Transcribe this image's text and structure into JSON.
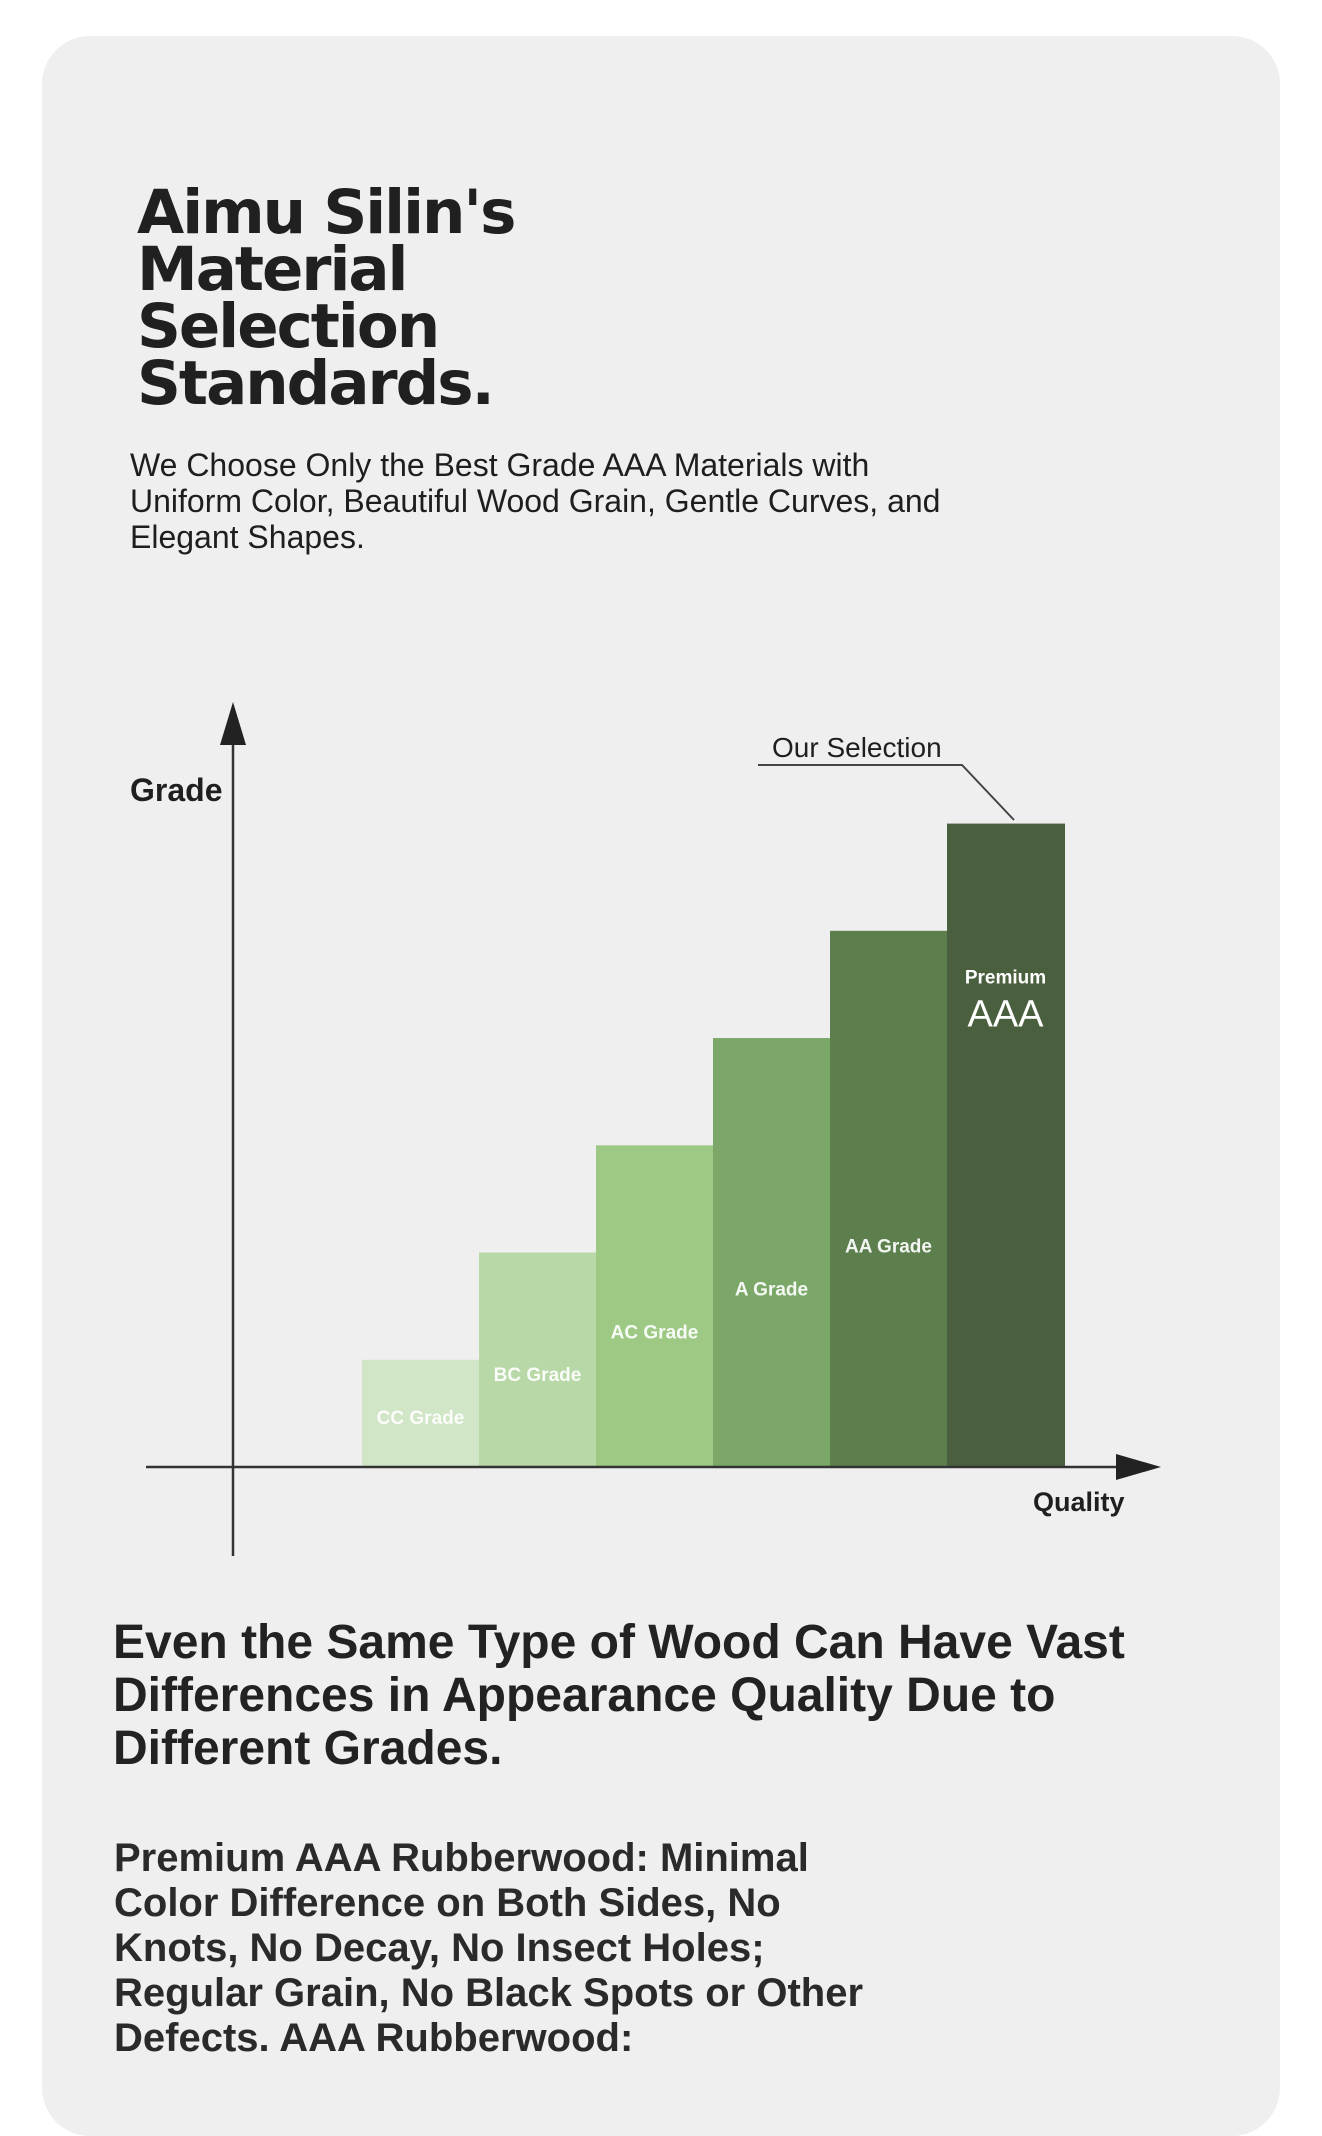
{
  "title": "Aimu Silin's Material Selection Standards.",
  "subtitle": "We Choose Only the Best Grade AAA Materials with Uniform Color, Beautiful Wood Grain, Gentle Curves, and Elegant Shapes.",
  "chart_data": {
    "type": "bar",
    "ylabel": "Grade",
    "xlabel": "Quality",
    "annotation": "Our Selection",
    "categories": [
      "CC Grade",
      "BC Grade",
      "AC Grade",
      "A Grade",
      "AA Grade",
      "AAA"
    ],
    "category_prefix": {
      "AAA": "Premium"
    },
    "values": [
      1,
      2,
      3,
      4,
      5,
      6
    ],
    "colors": [
      "#d1e5c7",
      "#b8d8a8",
      "#9ec985",
      "#7ba868",
      "#5d7e4d",
      "#4a5f3d"
    ],
    "ylim": [
      0,
      7.6
    ]
  },
  "heading2": "Even the Same Type of Wood Can Have Vast Differences in Appearance Quality Due to Different Grades.",
  "paragraph": "Premium AAA Rubberwood: Minimal Color Difference on Both Sides, No Knots, No Decay, No Insect Holes; Regular Grain, No Black Spots or Other Defects. AAA Rubberwood:"
}
